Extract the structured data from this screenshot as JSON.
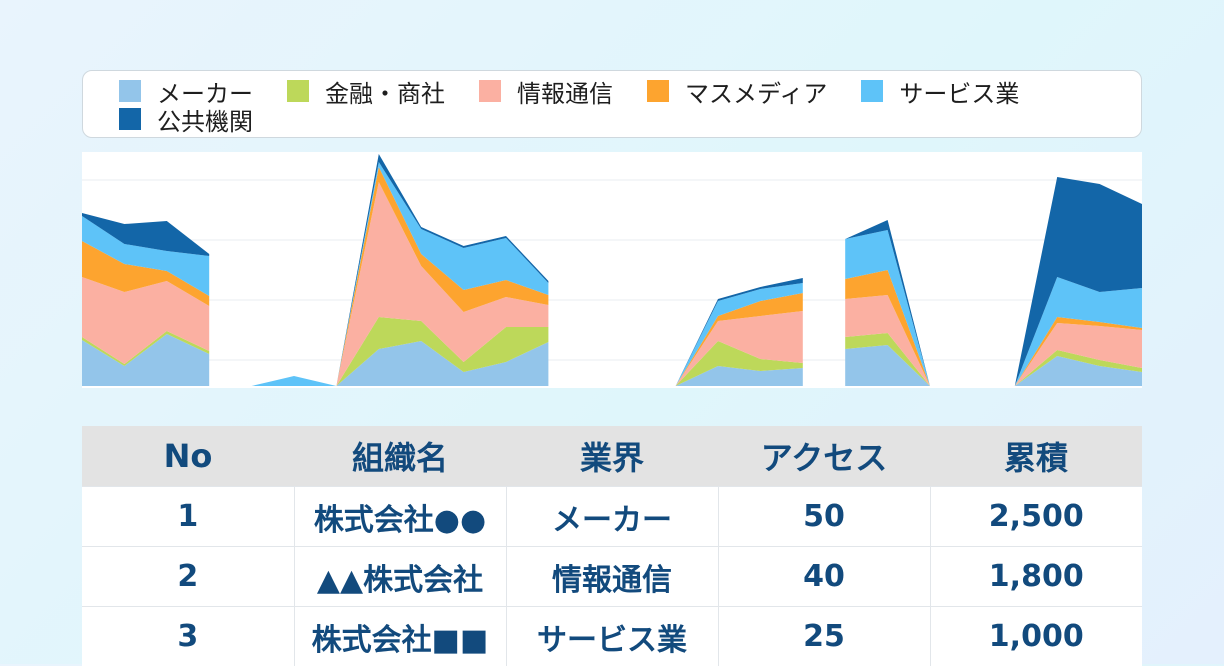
{
  "legend": {
    "items": [
      {
        "label": "メーカー",
        "color": "#93c5ea"
      },
      {
        "label": "金融・商社",
        "color": "#bdd85a"
      },
      {
        "label": "情報通信",
        "color": "#fbb0a2"
      },
      {
        "label": "マスメディア",
        "color": "#fda42f"
      },
      {
        "label": "サービス業",
        "color": "#5ec3f8"
      },
      {
        "label": "公共機関",
        "color": "#1366a8"
      }
    ]
  },
  "chart_data": {
    "type": "area",
    "stacked": true,
    "grid": true,
    "gap_after": [
      3,
      11,
      17
    ],
    "series": [
      {
        "name": "メーカー",
        "color": "#93c5ea",
        "values": [
          46,
          20,
          52,
          32,
          0,
          0,
          0,
          37,
          45,
          14,
          24,
          44,
          0,
          0,
          0,
          20,
          15,
          18,
          37,
          41,
          0,
          0,
          0,
          30,
          20,
          14
        ]
      },
      {
        "name": "金融・商社",
        "color": "#bdd85a",
        "values": [
          3,
          2,
          3,
          3,
          0,
          0,
          0,
          32,
          20,
          10,
          35,
          15,
          0,
          0,
          0,
          25,
          12,
          5,
          12,
          12,
          0,
          0,
          0,
          6,
          6,
          4
        ]
      },
      {
        "name": "情報通信",
        "color": "#fbb0a2",
        "values": [
          60,
          72,
          50,
          45,
          0,
          0,
          0,
          135,
          55,
          50,
          30,
          22,
          0,
          0,
          0,
          20,
          43,
          52,
          38,
          38,
          0,
          0,
          0,
          27,
          34,
          38
        ]
      },
      {
        "name": "マスメディア",
        "color": "#fda42f",
        "values": [
          36,
          28,
          10,
          10,
          0,
          0,
          0,
          15,
          12,
          22,
          17,
          10,
          0,
          0,
          0,
          5,
          15,
          18,
          20,
          25,
          0,
          0,
          0,
          6,
          4,
          2
        ]
      },
      {
        "name": "サービス業",
        "color": "#5ec3f8",
        "values": [
          25,
          20,
          20,
          40,
          0,
          10,
          0,
          5,
          25,
          42,
          42,
          12,
          0,
          0,
          0,
          15,
          12,
          10,
          40,
          40,
          0,
          0,
          0,
          40,
          30,
          40
        ]
      },
      {
        "name": "公共機関",
        "color": "#1366a8",
        "values": [
          3,
          20,
          30,
          2,
          0,
          0,
          0,
          8,
          2,
          2,
          2,
          2,
          0,
          0,
          0,
          2,
          2,
          5,
          0,
          10,
          0,
          0,
          0,
          100,
          108,
          84
        ]
      }
    ]
  },
  "table": {
    "headers": [
      "No",
      "組織名",
      "業界",
      "アクセス",
      "累積"
    ],
    "rows": [
      [
        "1",
        "株式会社●●",
        "メーカー",
        "50",
        "2,500"
      ],
      [
        "2",
        "▲▲株式会社",
        "情報通信",
        "40",
        "1,800"
      ],
      [
        "3",
        "株式会社■■",
        "サービス業",
        "25",
        "1,000"
      ]
    ]
  }
}
